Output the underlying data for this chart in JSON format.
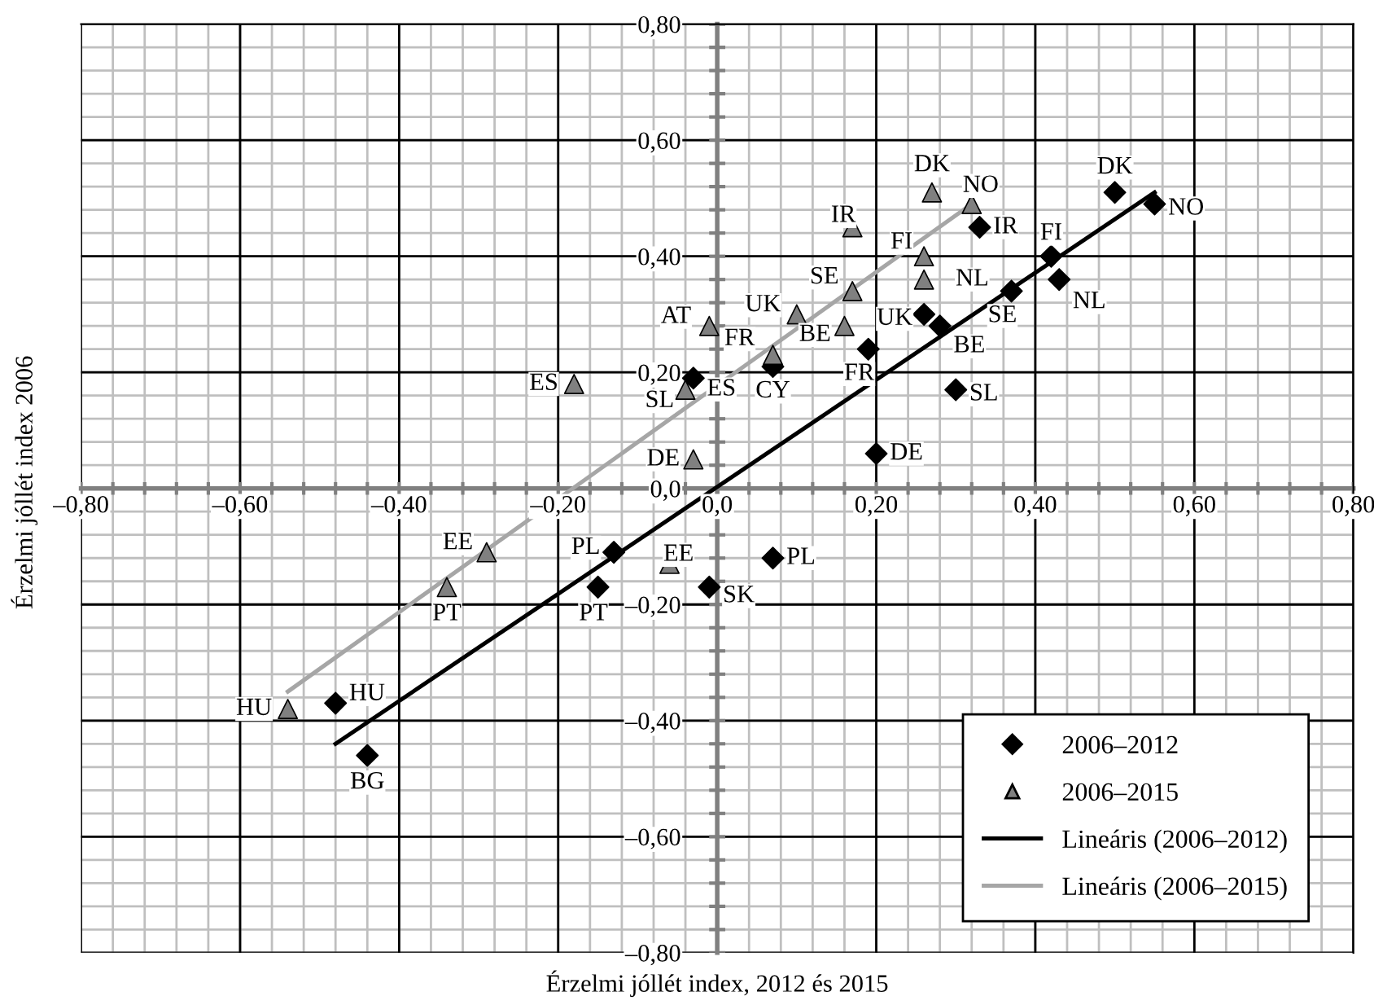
{
  "chart_data": {
    "type": "scatter",
    "xlabel": "Érzelmi jóllét index, 2012 és 2015",
    "ylabel": "Érzelmi jóllét index 2006",
    "xlim": [
      -0.8,
      0.8
    ],
    "ylim": [
      -0.8,
      0.8
    ],
    "xticks": [
      {
        "value": -0.8,
        "label": "–0,80"
      },
      {
        "value": -0.6,
        "label": "–0,60"
      },
      {
        "value": -0.4,
        "label": "–0,40"
      },
      {
        "value": -0.2,
        "label": "–0,20"
      },
      {
        "value": 0,
        "label": "0,0"
      },
      {
        "value": 0.2,
        "label": "0,20"
      },
      {
        "value": 0.4,
        "label": "0,40"
      },
      {
        "value": 0.6,
        "label": "0,60"
      },
      {
        "value": 0.8,
        "label": "0,80"
      }
    ],
    "yticks": [
      {
        "value": -0.8,
        "label": "–0,80"
      },
      {
        "value": -0.6,
        "label": "–0,60"
      },
      {
        "value": -0.4,
        "label": "–0,40"
      },
      {
        "value": -0.2,
        "label": "–0,20"
      },
      {
        "value": 0,
        "label": "0,0"
      },
      {
        "value": 0.2,
        "label": "0,20"
      },
      {
        "value": 0.4,
        "label": "0,40"
      },
      {
        "value": 0.6,
        "label": "0,60"
      },
      {
        "value": 0.8,
        "label": "0,80"
      }
    ],
    "grid": true,
    "legend": "bottom right",
    "series": [
      {
        "name": "2006–2012",
        "type": "scatter",
        "marker": "diamond",
        "color": "#000000",
        "x": [
          0.5,
          0.55,
          0.33,
          0.42,
          0.43,
          0.37,
          0.26,
          0.28,
          0.19,
          0.07,
          -0.03,
          0.3,
          0.2,
          -0.13,
          -0.15,
          -0.01,
          0.07,
          -0.48,
          -0.44
        ],
        "values": [
          0.51,
          0.49,
          0.45,
          0.4,
          0.36,
          0.34,
          0.3,
          0.28,
          0.24,
          0.21,
          0.19,
          0.17,
          0.06,
          -0.11,
          -0.17,
          -0.17,
          -0.12,
          -0.37,
          -0.46
        ]
      },
      {
        "name": "2006–2015",
        "type": "scatter",
        "marker": "triangle",
        "color": "#808080",
        "x": [
          0.27,
          0.32,
          0.17,
          0.26,
          0.26,
          0.17,
          0.1,
          0.16,
          0.07,
          -0.01,
          -0.18,
          -0.04,
          -0.03,
          -0.29,
          -0.34,
          -0.54,
          -0.06
        ],
        "values": [
          0.51,
          0.49,
          0.45,
          0.4,
          0.36,
          0.34,
          0.3,
          0.28,
          0.23,
          0.28,
          0.18,
          0.17,
          0.05,
          -0.11,
          -0.17,
          -0.38,
          -0.13
        ]
      },
      {
        "name": "Lineáris (2006–2012)",
        "type": "line",
        "marker": "none",
        "line_style": "solid",
        "color": "#000000",
        "x": [
          -0.48,
          0.55
        ],
        "values": [
          -0.44,
          0.51
        ]
      },
      {
        "name": "Lineáris (2006–2015)",
        "type": "line",
        "marker": "none",
        "line_style": "solid",
        "color": "#a6a6a6",
        "x": [
          -0.54,
          0.32
        ],
        "values": [
          -0.35,
          0.49
        ]
      }
    ],
    "annotations": [
      {
        "text": "DK",
        "x": 0.5,
        "y": 0.51
      },
      {
        "text": "NO",
        "x": 0.55,
        "y": 0.49
      },
      {
        "text": "IR",
        "x": 0.33,
        "y": 0.45
      },
      {
        "text": "FI",
        "x": 0.42,
        "y": 0.4
      },
      {
        "text": "NL",
        "x": 0.43,
        "y": 0.36
      },
      {
        "text": "SE",
        "x": 0.37,
        "y": 0.34
      },
      {
        "text": "UK",
        "x": 0.26,
        "y": 0.3
      },
      {
        "text": "BE",
        "x": 0.28,
        "y": 0.28
      },
      {
        "text": "FR",
        "x": 0.19,
        "y": 0.24
      },
      {
        "text": "CY",
        "x": 0.07,
        "y": 0.21
      },
      {
        "text": "ES",
        "x": -0.03,
        "y": 0.19
      },
      {
        "text": "SL",
        "x": 0.3,
        "y": 0.17
      },
      {
        "text": "DE",
        "x": 0.2,
        "y": 0.06
      },
      {
        "text": "PL",
        "x": -0.13,
        "y": -0.11
      },
      {
        "text": "PT",
        "x": -0.15,
        "y": -0.17
      },
      {
        "text": "SK",
        "x": -0.01,
        "y": -0.17
      },
      {
        "text": "PL",
        "x": 0.07,
        "y": -0.12
      },
      {
        "text": "HU",
        "x": -0.48,
        "y": -0.37
      },
      {
        "text": "BG",
        "x": -0.44,
        "y": -0.46
      },
      {
        "text": "DK",
        "x": 0.27,
        "y": 0.51
      },
      {
        "text": "NO",
        "x": 0.32,
        "y": 0.49
      },
      {
        "text": "IR",
        "x": 0.17,
        "y": 0.45
      },
      {
        "text": "FI",
        "x": 0.26,
        "y": 0.4
      },
      {
        "text": "NL",
        "x": 0.26,
        "y": 0.36
      },
      {
        "text": "SE",
        "x": 0.17,
        "y": 0.34
      },
      {
        "text": "UK",
        "x": 0.1,
        "y": 0.3
      },
      {
        "text": "BE",
        "x": 0.16,
        "y": 0.28
      },
      {
        "text": "FR",
        "x": 0.07,
        "y": 0.23
      },
      {
        "text": "AT",
        "x": -0.01,
        "y": 0.28
      },
      {
        "text": "ES",
        "x": -0.18,
        "y": 0.18
      },
      {
        "text": "SL",
        "x": -0.04,
        "y": 0.17
      },
      {
        "text": "DE",
        "x": -0.03,
        "y": 0.05
      },
      {
        "text": "EE",
        "x": -0.29,
        "y": -0.11
      },
      {
        "text": "PT",
        "x": -0.34,
        "y": -0.17
      },
      {
        "text": "HU",
        "x": -0.54,
        "y": -0.38
      },
      {
        "text": "EE",
        "x": -0.06,
        "y": -0.13
      }
    ]
  }
}
